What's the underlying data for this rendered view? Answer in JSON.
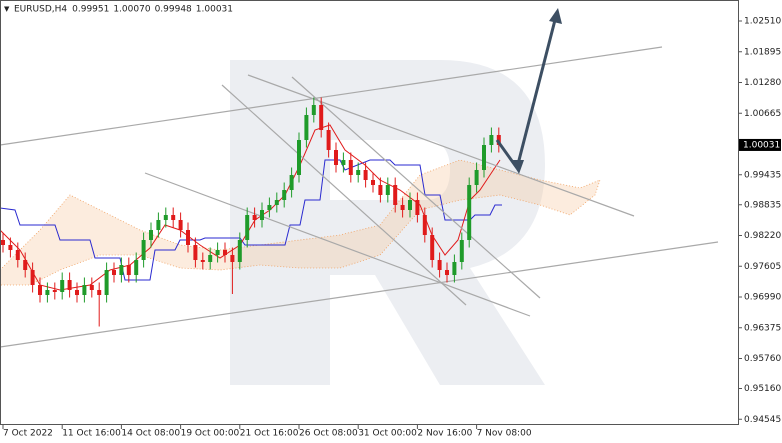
{
  "chart_data": {
    "type": "candlestick",
    "symbol": "EURUSD,H4",
    "header_ohlc": [
      0.99951,
      {
        "value": 1.0007,
        "label": "1.00070"
      },
      0.99948,
      1.00031
    ],
    "last_price": 1.00031,
    "categories": [
      "7 Oct 2022",
      null,
      null,
      null,
      null,
      null,
      null,
      null,
      "11 Oct 16:00",
      null,
      null,
      null,
      null,
      null,
      null,
      null,
      "14 Oct 08:00",
      null,
      null,
      null,
      null,
      null,
      null,
      null,
      "19 Oct 00:00",
      null,
      null,
      null,
      null,
      null,
      null,
      null,
      "21 Oct 16:00",
      null,
      null,
      null,
      null,
      null,
      null,
      null,
      "26 Oct 08:00",
      null,
      null,
      null,
      null,
      null,
      null,
      null,
      "31 Oct 00:00",
      null,
      null,
      null,
      null,
      null,
      null,
      null,
      "2 Nov 16:00",
      null,
      null,
      null,
      null,
      null,
      null,
      null,
      "7 Nov 08:00",
      null,
      null,
      null
    ],
    "open": [
      0.9813,
      0.9803,
      0.9793,
      0.9773,
      0.9753,
      0.9723,
      0.9703,
      0.9713,
      0.9709,
      0.9733,
      0.9713,
      0.9703,
      0.9723,
      0.9713,
      0.9703,
      0.9753,
      0.9743,
      0.9763,
      0.9743,
      0.9773,
      0.9813,
      0.9833,
      0.9853,
      0.9863,
      0.9853,
      0.9833,
      0.9803,
      0.9773,
      0.9769,
      0.9783,
      0.9793,
      0.9783,
      0.9769,
      0.9813,
      0.9863,
      0.9853,
      0.9873,
      0.9883,
      0.9893,
      0.9913,
      0.9943,
      1.0013,
      1.0063,
      1.0083,
      1.0033,
      0.9993,
      0.9963,
      0.9973,
      0.9943,
      0.9953,
      0.9933,
      0.9923,
      0.9903,
      0.9923,
      0.9883,
      0.9873,
      0.9893,
      0.9863,
      0.9823,
      0.9773,
      0.9753,
      0.9743,
      0.9769,
      0.9813,
      0.9923,
      0.9953,
      1.0003,
      1.0023
    ],
    "high": [
      0.9828,
      0.9818,
      0.9808,
      0.9788,
      0.9768,
      0.9738,
      0.9728,
      0.9728,
      0.9748,
      0.9748,
      0.9728,
      0.9738,
      0.9738,
      0.9728,
      0.9768,
      0.9768,
      0.9778,
      0.9778,
      0.9788,
      0.9828,
      0.9848,
      0.9868,
      0.9878,
      0.9878,
      0.9868,
      0.9848,
      0.9818,
      0.9788,
      0.9798,
      0.9808,
      0.9808,
      0.9798,
      0.9828,
      0.9878,
      0.9878,
      0.9888,
      0.9898,
      0.9908,
      0.9928,
      0.9958,
      1.0028,
      1.0078,
      1.0098,
      1.0098,
      1.0048,
      1.0008,
      0.9988,
      0.9988,
      0.9968,
      0.9968,
      0.9948,
      0.9938,
      0.9938,
      0.9938,
      0.9898,
      0.9908,
      0.9908,
      0.9878,
      0.9838,
      0.9788,
      0.9768,
      0.9784,
      0.9828,
      0.9938,
      0.9968,
      1.0018,
      1.0038,
      1.0038
    ],
    "low": [
      0.9788,
      0.9778,
      0.9758,
      0.9738,
      0.9708,
      0.9688,
      0.9688,
      0.9694,
      0.9694,
      0.9698,
      0.9688,
      0.9688,
      0.9698,
      0.964,
      0.9688,
      0.9728,
      0.9728,
      0.9728,
      0.9728,
      0.9758,
      0.9798,
      0.9818,
      0.9838,
      0.9838,
      0.9818,
      0.9788,
      0.9758,
      0.9754,
      0.9754,
      0.9768,
      0.9768,
      0.9705,
      0.9754,
      0.9798,
      0.9838,
      0.9838,
      0.9858,
      0.9868,
      0.9878,
      0.9898,
      0.9928,
      0.9998,
      1.0048,
      1.0018,
      0.9978,
      0.9948,
      0.9948,
      0.9928,
      0.9928,
      0.9918,
      0.9908,
      0.9888,
      0.9888,
      0.9868,
      0.9858,
      0.9858,
      0.9848,
      0.9808,
      0.9758,
      0.9738,
      0.9728,
      0.9728,
      0.9754,
      0.9798,
      0.9908,
      0.9938,
      0.9988,
      0.9988
    ],
    "close": [
      0.9803,
      0.9793,
      0.9773,
      0.9753,
      0.9723,
      0.9703,
      0.9713,
      0.9709,
      0.9733,
      0.9713,
      0.9703,
      0.9723,
      0.9713,
      0.9703,
      0.9753,
      0.9743,
      0.9763,
      0.9743,
      0.9773,
      0.9813,
      0.9833,
      0.9853,
      0.9863,
      0.9853,
      0.9833,
      0.9803,
      0.9773,
      0.9769,
      0.9783,
      0.9793,
      0.9783,
      0.9769,
      0.9813,
      0.9863,
      0.9853,
      0.9873,
      0.9883,
      0.9893,
      0.9913,
      0.9943,
      1.0013,
      1.0063,
      1.0083,
      1.0033,
      0.9993,
      0.9963,
      0.9973,
      0.9943,
      0.9953,
      0.9933,
      0.9923,
      0.9903,
      0.9923,
      0.9883,
      0.9873,
      0.9893,
      0.9863,
      0.9823,
      0.9773,
      0.9753,
      0.9743,
      0.9769,
      0.9813,
      0.9923,
      0.9953,
      1.0003,
      1.0023,
      1.0003
    ],
    "up_color": "#1f9b2a",
    "down_color": "#e01b1b",
    "ylim": [
      0.9443,
      1.0293
    ],
    "yticks": [
      {
        "value": 1.0251,
        "label": "1.02510"
      },
      1.01895,
      {
        "value": 1.0128,
        "label": "1.01280"
      },
      1.00665,
      0.99435,
      0.98835,
      {
        "value": 0.9822,
        "label": "0.98220"
      },
      0.97605,
      {
        "value": 0.9699,
        "label": "0.96990"
      },
      0.96375,
      {
        "value": 0.9576,
        "label": "0.95760"
      },
      {
        "value": 0.9516,
        "label": "0.95160"
      },
      0.94545
    ]
  }
}
